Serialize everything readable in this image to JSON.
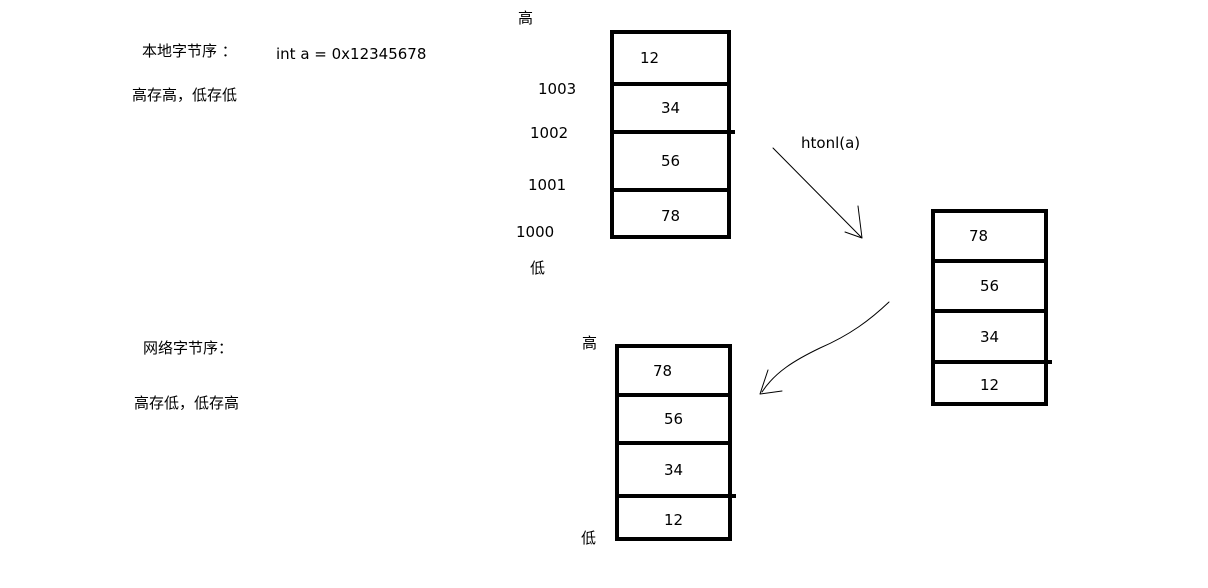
{
  "local": {
    "title": "本地字节序 ：",
    "code": "int a = 0x12345678",
    "rule": "高存高，低存低"
  },
  "network": {
    "title": "网络字节序：",
    "rule": "高存低，低存高"
  },
  "stack_top": {
    "high_label": "高",
    "low_label": "低",
    "addresses": [
      "1003",
      "1002",
      "1001",
      "1000"
    ],
    "cells": [
      "12",
      "34",
      "56",
      "78"
    ]
  },
  "stack_right": {
    "cells": [
      "78",
      "56",
      "34",
      "12"
    ]
  },
  "stack_bottom": {
    "high_label": "高",
    "low_label": "低",
    "cells": [
      "78",
      "56",
      "34",
      "12"
    ]
  },
  "arrow_label": "htonl(a)"
}
